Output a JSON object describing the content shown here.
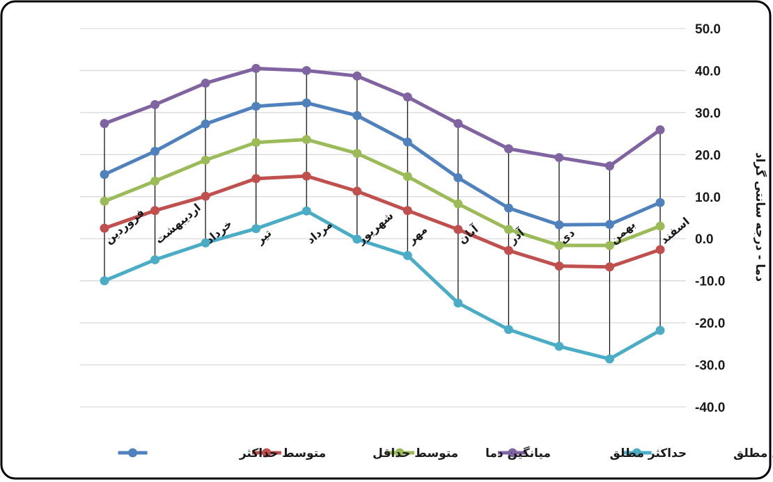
{
  "chart_data": {
    "type": "line",
    "ylabel": "دما - درجه سانتی گراد",
    "ylim": [
      -40,
      50
    ],
    "yticks": [
      "50.0",
      "40.0",
      "30.0",
      "20.0",
      "10.0",
      "0.0",
      "-10.0",
      "-20.0",
      "-30.0",
      "-40.0"
    ],
    "grid": true,
    "legend_position": "bottom",
    "categories": [
      "فروردین",
      "اردیبهشت",
      "خرداد",
      "تیر",
      "مرداد",
      "شهریور",
      "مهر",
      "آبان",
      "آذر",
      "دی",
      "بهمن",
      "اسفند"
    ],
    "series": [
      {
        "name": "متوسط حداکثر",
        "color": "#4f81bd",
        "values": [
          15.3,
          20.8,
          27.3,
          31.5,
          32.3,
          29.3,
          23.0,
          14.5,
          7.3,
          3.3,
          3.4,
          8.6
        ]
      },
      {
        "name": "متوسط حداقل",
        "color": "#c0504d",
        "values": [
          2.5,
          6.7,
          10.1,
          14.3,
          14.9,
          11.3,
          6.7,
          2.2,
          -2.8,
          -6.5,
          -6.7,
          -2.6
        ]
      },
      {
        "name": "میانگین دما",
        "color": "#9bbb59",
        "values": [
          8.9,
          13.7,
          18.7,
          22.9,
          23.6,
          20.3,
          14.8,
          8.3,
          2.2,
          -1.6,
          -1.6,
          3.0
        ]
      },
      {
        "name": "حداکثر مطلق",
        "color": "#8064a2",
        "values": [
          27.4,
          31.9,
          37.0,
          40.5,
          40.0,
          38.7,
          33.7,
          27.4,
          21.4,
          19.3,
          17.3,
          25.9
        ]
      },
      {
        "name": "حداقل مطلق",
        "color": "#4bacc6",
        "values": [
          -10.0,
          -5.0,
          -1.0,
          2.4,
          6.6,
          -0.1,
          -4.0,
          -15.3,
          -21.6,
          -25.6,
          -28.6,
          -21.8
        ]
      }
    ],
    "legend_order": [
      4,
      3,
      2,
      1,
      0
    ]
  }
}
